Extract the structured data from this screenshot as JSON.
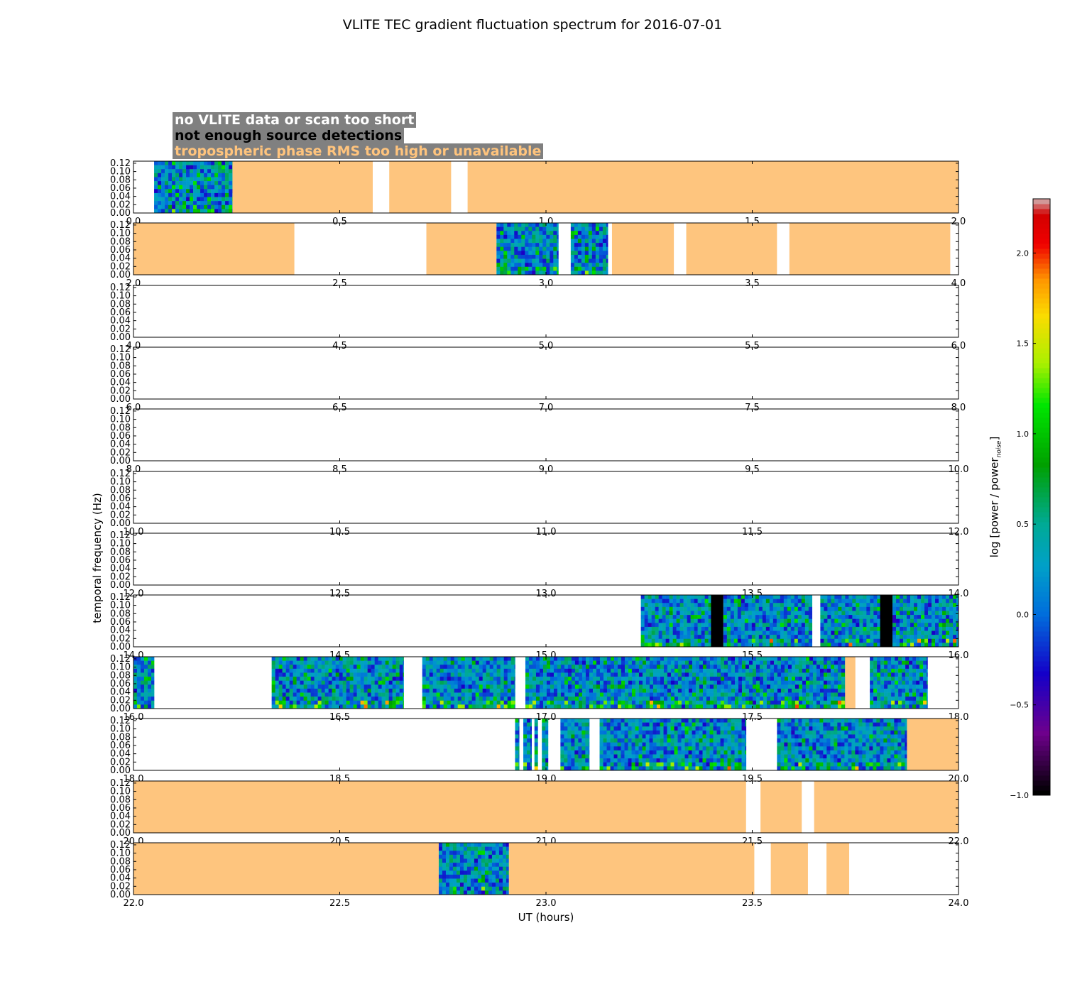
{
  "chart_data": {
    "type": "heatmap",
    "title": "VLITE TEC gradient fluctuation spectrum for 2016-07-01",
    "xlabel": "UT (hours)",
    "ylabel": "temporal frequency (Hz)",
    "ylim": [
      0,
      0.125
    ],
    "yticks": [
      "0.00",
      "0.02",
      "0.04",
      "0.06",
      "0.08",
      "0.10",
      "0.12"
    ],
    "legend": {
      "placement": "top-left",
      "entries": [
        {
          "label": "no VLITE data or scan too short",
          "text_color": "#ffffff",
          "meaning": "no-data"
        },
        {
          "label": "not enough source detections",
          "text_color": "#000000",
          "meaning": "few-detections"
        },
        {
          "label": "tropospheric phase RMS too high or unavailable",
          "text_color": "#ffc47d",
          "meaning": "tropo"
        }
      ],
      "background": "#808080"
    },
    "status_colors": {
      "tropo": "#fec57e",
      "few": "#000000",
      "none": "#ffffff"
    },
    "colorbar": {
      "label": "log [power / power",
      "label_sub": "noise",
      "label_end": "]",
      "range": [
        -1.0,
        2.3
      ],
      "ticks": [
        "−1.0",
        "−0.5",
        "0.0",
        "0.5",
        "1.0",
        "1.5",
        "2.0"
      ],
      "tick_values": [
        -1.0,
        -0.5,
        0.0,
        0.5,
        1.0,
        1.5,
        2.0
      ]
    },
    "panels": [
      {
        "range": [
          0,
          2
        ],
        "xticks": [
          "0.0",
          "0.5",
          "1.0",
          "1.5",
          "2.0"
        ],
        "segments": [
          [
            0.05,
            0.24,
            "spec",
            1
          ],
          [
            0.24,
            0.58,
            "tropo"
          ],
          [
            0.62,
            0.77,
            "tropo"
          ],
          [
            0.81,
            2.0,
            "tropo"
          ]
        ]
      },
      {
        "range": [
          2,
          4
        ],
        "xticks": [
          "2.0",
          "2.5",
          "3.0",
          "3.5",
          "4.0"
        ],
        "segments": [
          [
            2.0,
            2.39,
            "tropo"
          ],
          [
            2.71,
            2.88,
            "tropo"
          ],
          [
            2.88,
            3.03,
            "spec",
            2
          ],
          [
            3.06,
            3.15,
            "spec",
            3
          ],
          [
            3.16,
            3.31,
            "tropo"
          ],
          [
            3.34,
            3.56,
            "tropo"
          ],
          [
            3.59,
            3.98,
            "tropo"
          ]
        ]
      },
      {
        "range": [
          4,
          6
        ],
        "xticks": [
          "4.0",
          "4.5",
          "5.0",
          "5.5",
          "6.0"
        ],
        "segments": []
      },
      {
        "range": [
          6,
          8
        ],
        "xticks": [
          "6.0",
          "6.5",
          "7.0",
          "7.5",
          "8.0"
        ],
        "segments": []
      },
      {
        "range": [
          8,
          10
        ],
        "xticks": [
          "8.0",
          "8.5",
          "9.0",
          "9.5",
          "10.0"
        ],
        "segments": []
      },
      {
        "range": [
          10,
          12
        ],
        "xticks": [
          "10.0",
          "10.5",
          "11.0",
          "11.5",
          "12.0"
        ],
        "segments": []
      },
      {
        "range": [
          12,
          14
        ],
        "xticks": [
          "12.0",
          "12.5",
          "13.0",
          "13.5",
          "14.0"
        ],
        "segments": []
      },
      {
        "range": [
          14,
          16
        ],
        "xticks": [
          "14.0",
          "14.5",
          "15.0",
          "15.5",
          "16.0"
        ],
        "segments": [
          [
            15.23,
            15.4,
            "spec",
            4
          ],
          [
            15.4,
            15.43,
            "few"
          ],
          [
            15.43,
            15.645,
            "spec",
            5
          ],
          [
            15.665,
            15.81,
            "spec",
            6
          ],
          [
            15.81,
            15.84,
            "few"
          ],
          [
            15.84,
            16.0,
            "spec",
            7
          ]
        ]
      },
      {
        "range": [
          16,
          18
        ],
        "xticks": [
          "16.0",
          "16.5",
          "17.0",
          "17.5",
          "18.0"
        ],
        "segments": [
          [
            16.0,
            16.05,
            "spec",
            8
          ],
          [
            16.335,
            16.655,
            "spec",
            9
          ],
          [
            16.7,
            16.925,
            "spec",
            10
          ],
          [
            16.95,
            17.725,
            "spec",
            11
          ],
          [
            17.725,
            17.75,
            "tropo"
          ],
          [
            17.785,
            17.925,
            "spec",
            12
          ]
        ]
      },
      {
        "range": [
          18,
          20
        ],
        "xticks": [
          "18.0",
          "18.5",
          "19.0",
          "19.5",
          "20.0"
        ],
        "segments": [
          [
            18.925,
            18.935,
            "spec",
            13
          ],
          [
            18.945,
            18.965,
            "spec",
            14
          ],
          [
            18.972,
            18.98,
            "spec",
            15
          ],
          [
            18.99,
            19.005,
            "spec",
            16
          ],
          [
            19.035,
            19.105,
            "spec",
            17
          ],
          [
            19.13,
            19.485,
            "spec",
            18
          ],
          [
            19.56,
            19.875,
            "spec",
            19
          ],
          [
            19.875,
            20.0,
            "tropo"
          ]
        ]
      },
      {
        "range": [
          20,
          22
        ],
        "xticks": [
          "20.0",
          "20.5",
          "21.0",
          "21.5",
          "22.0"
        ],
        "segments": [
          [
            20.0,
            21.485,
            "tropo"
          ],
          [
            21.52,
            21.62,
            "tropo"
          ],
          [
            21.65,
            22.0,
            "tropo"
          ]
        ]
      },
      {
        "range": [
          22,
          24
        ],
        "xticks": [
          "22.0",
          "22.5",
          "23.0",
          "23.5",
          "24.0"
        ],
        "segments": [
          [
            22.0,
            22.74,
            "tropo"
          ],
          [
            22.74,
            22.91,
            "spec",
            20
          ],
          [
            22.91,
            23.505,
            "tropo"
          ],
          [
            23.545,
            23.635,
            "tropo"
          ],
          [
            23.68,
            23.735,
            "tropo"
          ]
        ]
      }
    ]
  }
}
